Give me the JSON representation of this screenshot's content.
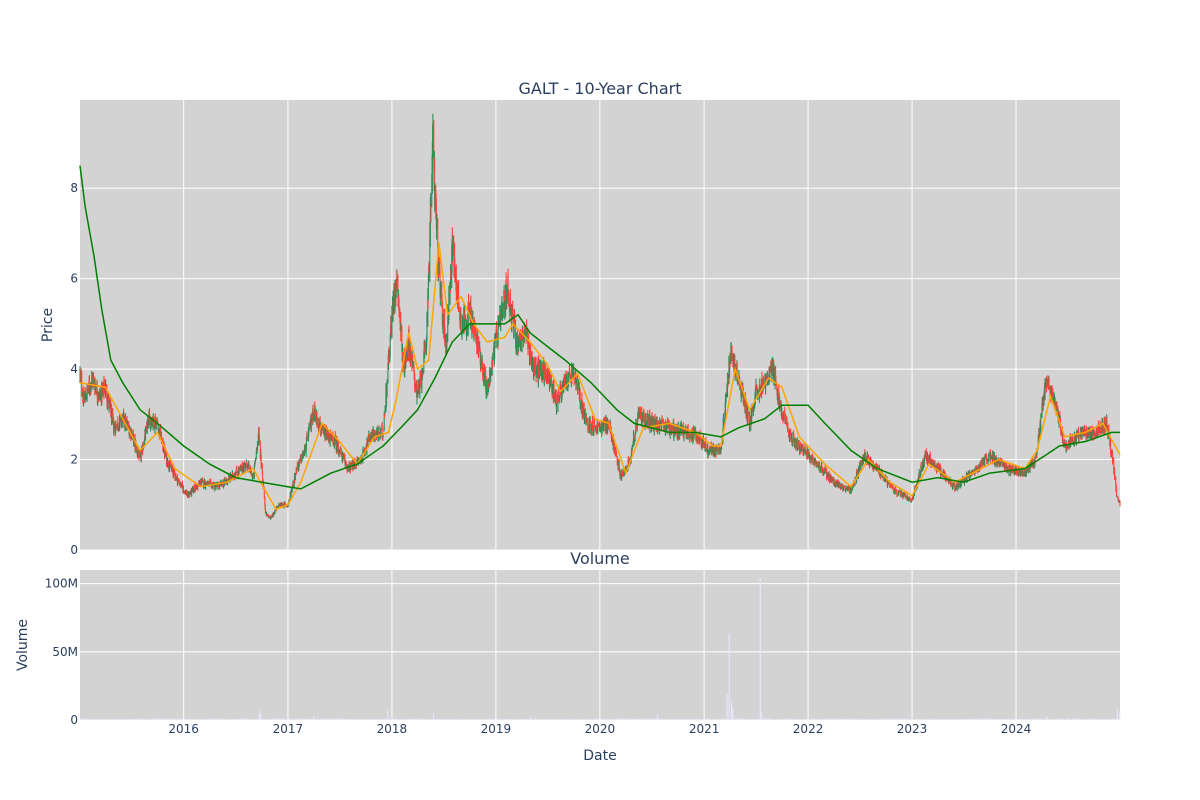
{
  "chart_data": {
    "type": "candlestick",
    "title": "GALT - 10-Year Chart",
    "ticker": "GALT",
    "xlabel": "Date",
    "x_range": [
      "2015-01-02",
      "2024-12-31"
    ],
    "x_ticks": [
      "2016",
      "2017",
      "2018",
      "2019",
      "2020",
      "2021",
      "2022",
      "2023",
      "2024"
    ],
    "price_panel": {
      "ylabel": "Price",
      "ylim": [
        0,
        9.95
      ],
      "y_ticks": [
        "0",
        "2",
        "4",
        "6",
        "8"
      ],
      "background": "#d3d3d3",
      "grid": true,
      "series": [
        {
          "kind": "ohlc",
          "increasing_color": "#2e8b57",
          "decreasing_color": "#ff4136",
          "close_keypoints": [
            [
              "2015-01-02",
              3.9
            ],
            [
              "2015-01-15",
              3.3
            ],
            [
              "2015-02-15",
              3.8
            ],
            [
              "2015-03-10",
              3.4
            ],
            [
              "2015-04-01",
              3.6
            ],
            [
              "2015-05-01",
              2.7
            ],
            [
              "2015-06-01",
              2.9
            ],
            [
              "2015-07-01",
              2.6
            ],
            [
              "2015-08-01",
              2.0
            ],
            [
              "2015-09-01",
              2.9
            ],
            [
              "2015-10-01",
              2.8
            ],
            [
              "2015-11-01",
              2.0
            ],
            [
              "2015-12-15",
              1.5
            ],
            [
              "2016-01-15",
              1.2
            ],
            [
              "2016-03-01",
              1.5
            ],
            [
              "2016-05-01",
              1.4
            ],
            [
              "2016-06-15",
              1.6
            ],
            [
              "2016-08-10",
              1.9
            ],
            [
              "2016-09-01",
              1.6
            ],
            [
              "2016-09-20",
              2.6
            ],
            [
              "2016-10-15",
              0.8
            ],
            [
              "2016-11-01",
              0.7
            ],
            [
              "2016-12-01",
              1.0
            ],
            [
              "2017-01-01",
              1.0
            ],
            [
              "2017-02-01",
              1.8
            ],
            [
              "2017-03-01",
              2.2
            ],
            [
              "2017-04-01",
              3.1
            ],
            [
              "2017-05-01",
              2.6
            ],
            [
              "2017-06-15",
              2.4
            ],
            [
              "2017-08-01",
              1.8
            ],
            [
              "2017-09-15",
              2.0
            ],
            [
              "2017-10-15",
              2.5
            ],
            [
              "2017-12-01",
              2.6
            ],
            [
              "2018-01-05",
              5.5
            ],
            [
              "2018-01-20",
              6.0
            ],
            [
              "2018-02-10",
              4.0
            ],
            [
              "2018-03-01",
              4.6
            ],
            [
              "2018-04-01",
              3.4
            ],
            [
              "2018-05-01",
              4.5
            ],
            [
              "2018-05-25",
              9.0
            ],
            [
              "2018-06-15",
              6.0
            ],
            [
              "2018-07-10",
              4.5
            ],
            [
              "2018-08-01",
              6.7
            ],
            [
              "2018-09-01",
              5.0
            ],
            [
              "2018-10-01",
              5.2
            ],
            [
              "2018-11-01",
              4.5
            ],
            [
              "2018-12-01",
              3.5
            ],
            [
              "2019-01-01",
              4.6
            ],
            [
              "2019-02-10",
              5.8
            ],
            [
              "2019-03-15",
              4.6
            ],
            [
              "2019-04-15",
              4.8
            ],
            [
              "2019-05-15",
              4.0
            ],
            [
              "2019-07-01",
              3.9
            ],
            [
              "2019-08-01",
              3.3
            ],
            [
              "2019-09-01",
              3.7
            ],
            [
              "2019-10-01",
              3.9
            ],
            [
              "2019-11-15",
              2.8
            ],
            [
              "2020-01-01",
              2.7
            ],
            [
              "2020-02-01",
              2.8
            ],
            [
              "2020-03-15",
              1.6
            ],
            [
              "2020-04-15",
              2.0
            ],
            [
              "2020-05-15",
              3.0
            ],
            [
              "2020-07-01",
              2.8
            ],
            [
              "2020-09-01",
              2.7
            ],
            [
              "2020-11-01",
              2.6
            ],
            [
              "2020-12-15",
              2.5
            ],
            [
              "2021-01-15",
              2.2
            ],
            [
              "2021-03-01",
              2.2
            ],
            [
              "2021-04-05",
              4.5
            ],
            [
              "2021-05-01",
              3.8
            ],
            [
              "2021-06-10",
              2.8
            ],
            [
              "2021-07-01",
              3.5
            ],
            [
              "2021-08-01",
              3.7
            ],
            [
              "2021-09-01",
              4.0
            ],
            [
              "2021-10-01",
              3.0
            ],
            [
              "2021-11-01",
              2.5
            ],
            [
              "2021-12-15",
              2.2
            ],
            [
              "2022-02-01",
              1.9
            ],
            [
              "2022-04-01",
              1.5
            ],
            [
              "2022-06-01",
              1.3
            ],
            [
              "2022-07-15",
              2.1
            ],
            [
              "2022-09-01",
              1.8
            ],
            [
              "2022-11-01",
              1.3
            ],
            [
              "2023-01-01",
              1.1
            ],
            [
              "2023-02-15",
              2.1
            ],
            [
              "2023-04-01",
              1.8
            ],
            [
              "2023-06-01",
              1.4
            ],
            [
              "2023-08-01",
              1.7
            ],
            [
              "2023-10-01",
              2.1
            ],
            [
              "2023-12-01",
              1.8
            ],
            [
              "2024-02-01",
              1.7
            ],
            [
              "2024-03-10",
              2.0
            ],
            [
              "2024-04-15",
              3.8
            ],
            [
              "2024-05-20",
              3.2
            ],
            [
              "2024-06-20",
              2.3
            ],
            [
              "2024-08-15",
              2.6
            ],
            [
              "2024-10-01",
              2.6
            ],
            [
              "2024-11-15",
              2.8
            ],
            [
              "2024-12-05",
              2.0
            ],
            [
              "2024-12-20",
              1.2
            ],
            [
              "2024-12-31",
              1.0
            ]
          ]
        },
        {
          "kind": "line",
          "color": "#ffa500",
          "points": [
            [
              "2015-01-02",
              3.7
            ],
            [
              "2015-04-01",
              3.6
            ],
            [
              "2015-06-01",
              2.9
            ],
            [
              "2015-08-01",
              2.2
            ],
            [
              "2015-10-01",
              2.6
            ],
            [
              "2015-12-01",
              1.8
            ],
            [
              "2016-03-01",
              1.4
            ],
            [
              "2016-06-01",
              1.5
            ],
            [
              "2016-09-01",
              1.8
            ],
            [
              "2016-10-15",
              1.3
            ],
            [
              "2016-11-20",
              0.9
            ],
            [
              "2017-01-01",
              1.0
            ],
            [
              "2017-02-15",
              1.5
            ],
            [
              "2017-05-01",
              2.8
            ],
            [
              "2017-07-01",
              2.4
            ],
            [
              "2017-09-01",
              1.9
            ],
            [
              "2017-11-01",
              2.5
            ],
            [
              "2017-12-20",
              2.6
            ],
            [
              "2018-01-15",
              3.3
            ],
            [
              "2018-03-01",
              4.8
            ],
            [
              "2018-04-01",
              4.0
            ],
            [
              "2018-05-10",
              4.2
            ],
            [
              "2018-06-15",
              6.8
            ],
            [
              "2018-07-15",
              5.2
            ],
            [
              "2018-09-01",
              5.6
            ],
            [
              "2018-10-15",
              5.0
            ],
            [
              "2018-12-01",
              4.6
            ],
            [
              "2019-02-01",
              4.7
            ],
            [
              "2019-03-01",
              5.0
            ],
            [
              "2019-05-01",
              4.6
            ],
            [
              "2019-07-01",
              4.1
            ],
            [
              "2019-08-15",
              3.5
            ],
            [
              "2019-10-15",
              3.9
            ],
            [
              "2019-12-15",
              2.9
            ],
            [
              "2020-02-01",
              2.8
            ],
            [
              "2020-04-01",
              1.7
            ],
            [
              "2020-06-01",
              2.7
            ],
            [
              "2020-09-01",
              2.8
            ],
            [
              "2020-12-01",
              2.6
            ],
            [
              "2021-02-01",
              2.3
            ],
            [
              "2021-03-01",
              2.3
            ],
            [
              "2021-04-20",
              4.0
            ],
            [
              "2021-06-10",
              3.1
            ],
            [
              "2021-08-15",
              3.8
            ],
            [
              "2021-10-01",
              3.6
            ],
            [
              "2021-12-01",
              2.5
            ],
            [
              "2022-03-01",
              1.9
            ],
            [
              "2022-06-01",
              1.4
            ],
            [
              "2022-08-01",
              2.0
            ],
            [
              "2022-10-15",
              1.5
            ],
            [
              "2023-01-01",
              1.2
            ],
            [
              "2023-03-01",
              1.9
            ],
            [
              "2023-06-01",
              1.5
            ],
            [
              "2023-09-01",
              1.8
            ],
            [
              "2023-11-01",
              2.0
            ],
            [
              "2024-02-01",
              1.8
            ],
            [
              "2024-03-15",
              2.2
            ],
            [
              "2024-05-01",
              3.4
            ],
            [
              "2024-06-20",
              2.5
            ],
            [
              "2024-09-01",
              2.6
            ],
            [
              "2024-11-01",
              2.8
            ],
            [
              "2024-12-31",
              2.1
            ]
          ]
        },
        {
          "kind": "line",
          "color": "#008000",
          "points": [
            [
              "2015-01-02",
              8.5
            ],
            [
              "2015-01-20",
              7.6
            ],
            [
              "2015-02-20",
              6.5
            ],
            [
              "2015-03-20",
              5.3
            ],
            [
              "2015-04-20",
              4.2
            ],
            [
              "2015-06-01",
              3.7
            ],
            [
              "2015-08-01",
              3.1
            ],
            [
              "2015-10-01",
              2.8
            ],
            [
              "2016-01-01",
              2.3
            ],
            [
              "2016-04-01",
              1.9
            ],
            [
              "2016-07-01",
              1.6
            ],
            [
              "2016-10-01",
              1.5
            ],
            [
              "2017-01-01",
              1.4
            ],
            [
              "2017-02-15",
              1.35
            ],
            [
              "2017-04-01",
              1.5
            ],
            [
              "2017-06-01",
              1.7
            ],
            [
              "2017-09-01",
              1.9
            ],
            [
              "2017-12-01",
              2.3
            ],
            [
              "2018-02-01",
              2.7
            ],
            [
              "2018-04-01",
              3.1
            ],
            [
              "2018-06-01",
              3.8
            ],
            [
              "2018-08-01",
              4.6
            ],
            [
              "2018-10-01",
              5.0
            ],
            [
              "2018-12-01",
              5.0
            ],
            [
              "2019-02-01",
              5.0
            ],
            [
              "2019-03-20",
              5.2
            ],
            [
              "2019-05-01",
              4.8
            ],
            [
              "2019-07-01",
              4.5
            ],
            [
              "2019-09-01",
              4.2
            ],
            [
              "2019-12-01",
              3.7
            ],
            [
              "2020-03-01",
              3.1
            ],
            [
              "2020-05-01",
              2.8
            ],
            [
              "2020-07-01",
              2.7
            ],
            [
              "2020-09-01",
              2.6
            ],
            [
              "2020-12-01",
              2.6
            ],
            [
              "2021-03-01",
              2.5
            ],
            [
              "2021-05-01",
              2.7
            ],
            [
              "2021-08-01",
              2.9
            ],
            [
              "2021-10-01",
              3.2
            ],
            [
              "2022-01-01",
              3.2
            ],
            [
              "2022-03-01",
              2.8
            ],
            [
              "2022-06-01",
              2.2
            ],
            [
              "2022-09-01",
              1.8
            ],
            [
              "2023-01-01",
              1.5
            ],
            [
              "2023-04-01",
              1.6
            ],
            [
              "2023-07-01",
              1.5
            ],
            [
              "2023-10-01",
              1.7
            ],
            [
              "2024-02-01",
              1.8
            ],
            [
              "2024-04-15",
              2.1
            ],
            [
              "2024-06-01",
              2.3
            ],
            [
              "2024-09-01",
              2.4
            ],
            [
              "2024-12-01",
              2.6
            ],
            [
              "2024-12-31",
              2.6
            ]
          ]
        }
      ]
    },
    "volume_panel": {
      "title": "Volume",
      "ylabel": "Volume",
      "ylim": [
        0,
        110000000
      ],
      "y_ticks": [
        "0",
        "50M",
        "100M"
      ],
      "y_tick_values": [
        0,
        50000000,
        100000000
      ],
      "background": "#d3d3d3",
      "grid": true,
      "bar_color": "#e6e6fa",
      "baseline_volume": 1000000,
      "spikes": [
        [
          "2016-09-20",
          7000000
        ],
        [
          "2016-09-25",
          5000000
        ],
        [
          "2017-04-01",
          3000000
        ],
        [
          "2017-12-15",
          7000000
        ],
        [
          "2018-05-25",
          5000000
        ],
        [
          "2019-05-01",
          2500000
        ],
        [
          "2020-07-20",
          4000000
        ],
        [
          "2021-03-20",
          19000000
        ],
        [
          "2021-03-28",
          63000000
        ],
        [
          "2021-04-05",
          13000000
        ],
        [
          "2021-04-10",
          9000000
        ],
        [
          "2021-07-15",
          104000000
        ],
        [
          "2021-07-20",
          6000000
        ],
        [
          "2024-04-15",
          3000000
        ],
        [
          "2024-12-20",
          8000000
        ],
        [
          "2024-12-28",
          6000000
        ]
      ]
    }
  }
}
